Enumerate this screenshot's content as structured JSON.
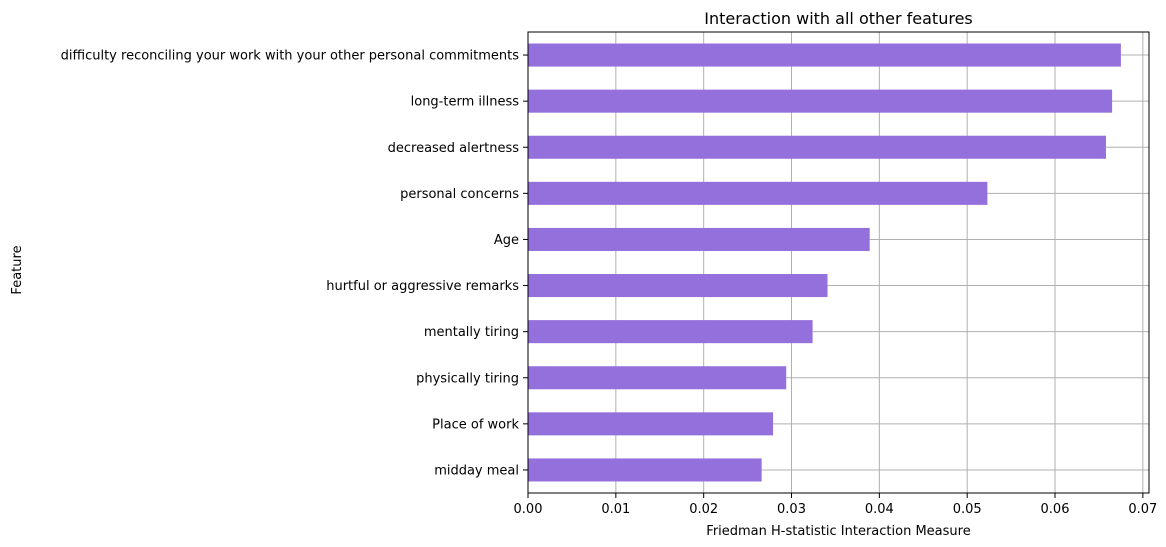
{
  "chart_data": {
    "type": "bar",
    "orientation": "horizontal",
    "title": "Interaction with all other features",
    "xlabel": "Friedman H-statistic Interaction Measure",
    "ylabel": "Feature",
    "xlim": [
      0,
      0.0707
    ],
    "xticks": [
      "0.00",
      "0.01",
      "0.02",
      "0.03",
      "0.04",
      "0.05",
      "0.06",
      "0.07"
    ],
    "xtick_values": [
      0,
      0.01,
      0.02,
      0.03,
      0.04,
      0.05,
      0.06,
      0.07
    ],
    "grid": true,
    "bar_color": "#9370DB",
    "categories": [
      "difficulty reconciling your work with your other personal commitments",
      "long-term illness",
      "decreased alertness",
      "personal concerns",
      "Age",
      "hurtful or aggressive remarks",
      "mentally tiring",
      "physically tiring",
      "Place of work",
      "midday meal"
    ],
    "values": [
      0.0675,
      0.0665,
      0.0658,
      0.0523,
      0.0389,
      0.0341,
      0.0324,
      0.0294,
      0.0279,
      0.0266
    ]
  }
}
